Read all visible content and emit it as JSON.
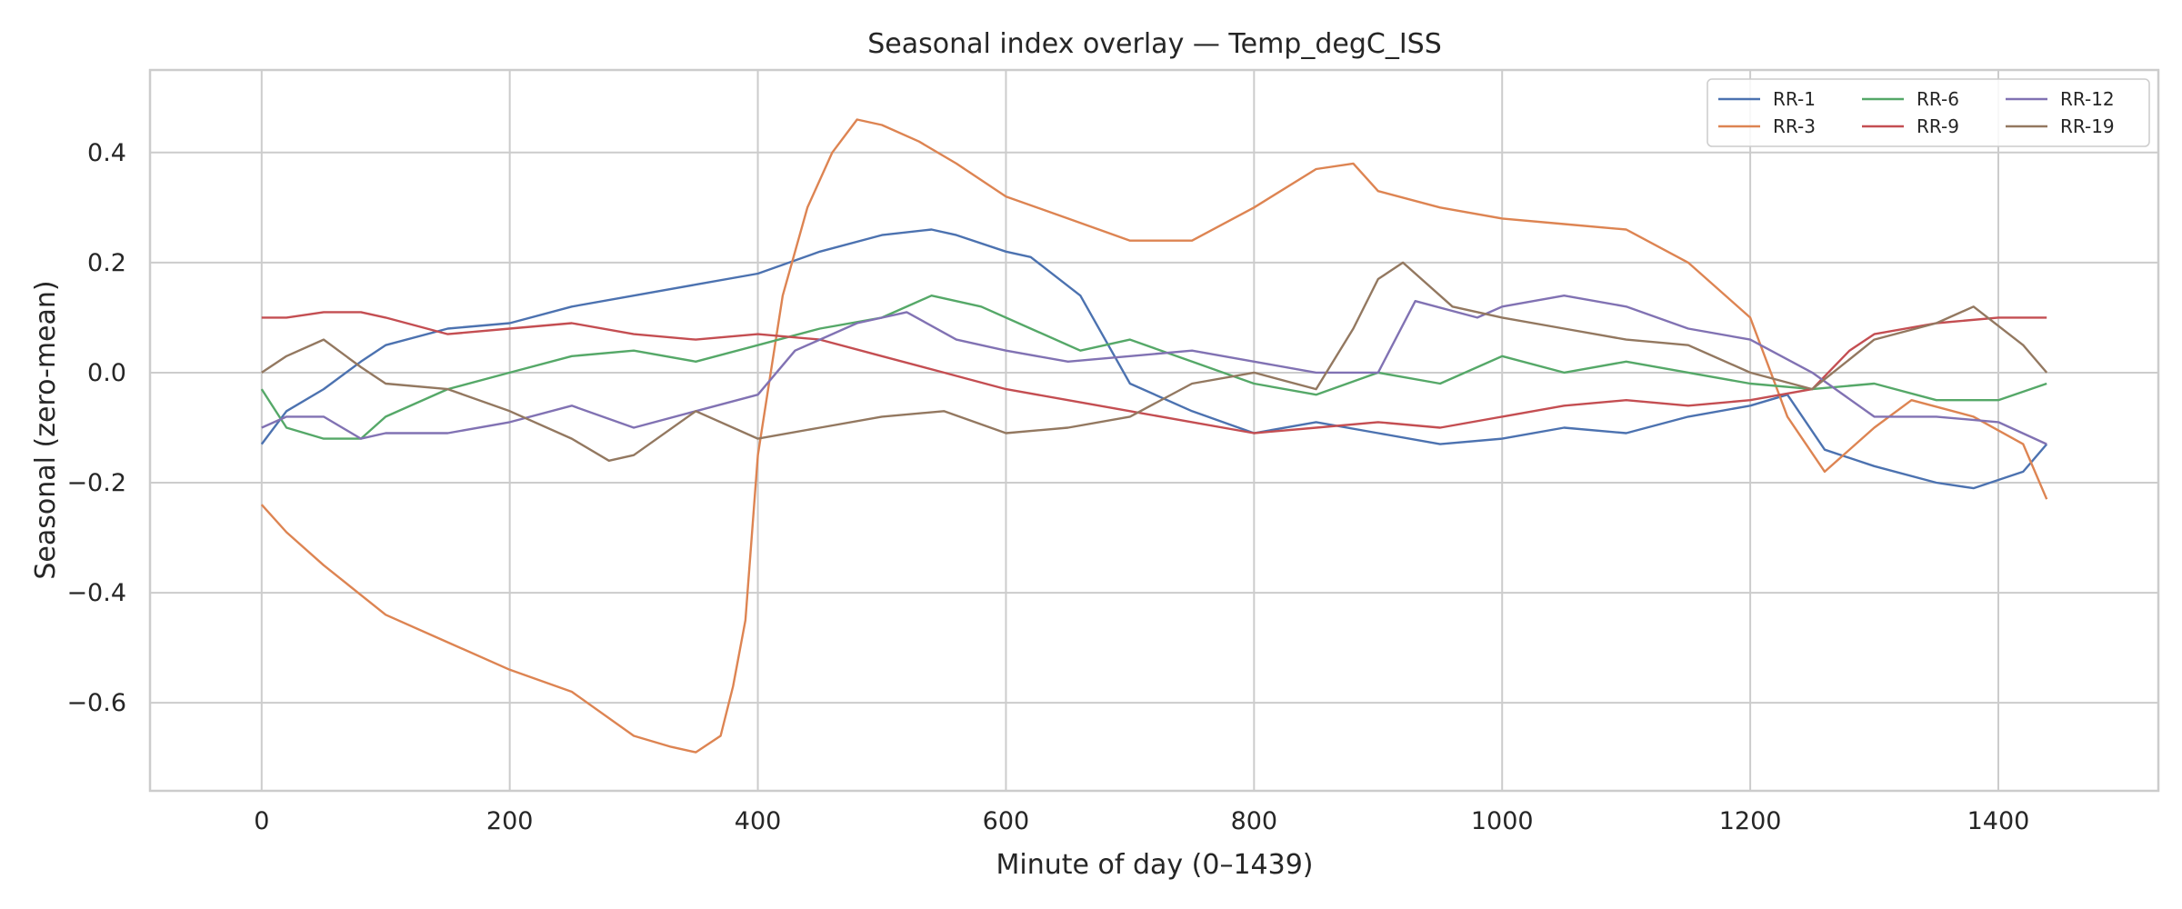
{
  "chart_data": {
    "type": "line",
    "title": "Seasonal index overlay — Temp_degC_ISS",
    "xlabel": "Minute of day (0–1439)",
    "ylabel": "Seasonal (zero-mean)",
    "xlim": [
      -90,
      1529
    ],
    "ylim": [
      -0.76,
      0.55
    ],
    "xticks": [
      0,
      200,
      400,
      600,
      800,
      1000,
      1200,
      1400
    ],
    "xtick_labels": [
      "0",
      "200",
      "400",
      "600",
      "800",
      "1000",
      "1200",
      "1400"
    ],
    "yticks": [
      -0.6,
      -0.4,
      -0.2,
      0.0,
      0.2,
      0.4
    ],
    "ytick_labels": [
      "−0.6",
      "−0.4",
      "−0.2",
      "0.0",
      "0.2",
      "0.4"
    ],
    "grid": true,
    "legend": {
      "placement": "top-right",
      "columns": 3
    },
    "series": [
      {
        "name": "RR-1",
        "color": "#4c72b0",
        "x": [
          0,
          20,
          50,
          80,
          100,
          150,
          200,
          250,
          300,
          350,
          400,
          450,
          500,
          540,
          560,
          600,
          620,
          660,
          700,
          750,
          800,
          850,
          900,
          950,
          1000,
          1050,
          1100,
          1150,
          1200,
          1230,
          1260,
          1300,
          1350,
          1380,
          1420,
          1439
        ],
        "values": [
          -0.13,
          -0.07,
          -0.03,
          0.02,
          0.05,
          0.08,
          0.09,
          0.12,
          0.14,
          0.16,
          0.18,
          0.22,
          0.25,
          0.26,
          0.25,
          0.22,
          0.21,
          0.14,
          -0.02,
          -0.07,
          -0.11,
          -0.09,
          -0.11,
          -0.13,
          -0.12,
          -0.1,
          -0.11,
          -0.08,
          -0.06,
          -0.04,
          -0.14,
          -0.17,
          -0.2,
          -0.21,
          -0.18,
          -0.13
        ]
      },
      {
        "name": "RR-3",
        "color": "#dd8452",
        "x": [
          0,
          20,
          50,
          100,
          150,
          200,
          250,
          300,
          330,
          350,
          370,
          380,
          390,
          400,
          420,
          440,
          460,
          480,
          500,
          530,
          560,
          600,
          650,
          700,
          750,
          800,
          850,
          880,
          900,
          950,
          1000,
          1050,
          1100,
          1150,
          1200,
          1230,
          1260,
          1300,
          1330,
          1380,
          1420,
          1439
        ],
        "values": [
          -0.24,
          -0.29,
          -0.35,
          -0.44,
          -0.49,
          -0.54,
          -0.58,
          -0.66,
          -0.68,
          -0.69,
          -0.66,
          -0.57,
          -0.45,
          -0.15,
          0.14,
          0.3,
          0.4,
          0.46,
          0.45,
          0.42,
          0.38,
          0.32,
          0.28,
          0.24,
          0.24,
          0.3,
          0.37,
          0.38,
          0.33,
          0.3,
          0.28,
          0.27,
          0.26,
          0.2,
          0.1,
          -0.08,
          -0.18,
          -0.1,
          -0.05,
          -0.08,
          -0.13,
          -0.23
        ]
      },
      {
        "name": "RR-6",
        "color": "#55a868",
        "x": [
          0,
          20,
          50,
          80,
          100,
          150,
          200,
          250,
          300,
          350,
          400,
          450,
          500,
          540,
          580,
          620,
          660,
          700,
          750,
          800,
          850,
          900,
          950,
          1000,
          1050,
          1100,
          1150,
          1200,
          1250,
          1300,
          1350,
          1400,
          1439
        ],
        "values": [
          -0.03,
          -0.1,
          -0.12,
          -0.12,
          -0.08,
          -0.03,
          0.0,
          0.03,
          0.04,
          0.02,
          0.05,
          0.08,
          0.1,
          0.14,
          0.12,
          0.08,
          0.04,
          0.06,
          0.02,
          -0.02,
          -0.04,
          0.0,
          -0.02,
          0.03,
          0.0,
          0.02,
          0.0,
          -0.02,
          -0.03,
          -0.02,
          -0.05,
          -0.05,
          -0.02
        ]
      },
      {
        "name": "RR-9",
        "color": "#c44e52",
        "x": [
          0,
          20,
          50,
          80,
          100,
          150,
          200,
          250,
          300,
          350,
          400,
          450,
          500,
          550,
          600,
          650,
          700,
          750,
          800,
          850,
          900,
          950,
          1000,
          1050,
          1100,
          1150,
          1200,
          1250,
          1280,
          1300,
          1350,
          1400,
          1439
        ],
        "values": [
          0.1,
          0.1,
          0.11,
          0.11,
          0.1,
          0.07,
          0.08,
          0.09,
          0.07,
          0.06,
          0.07,
          0.06,
          0.03,
          0.0,
          -0.03,
          -0.05,
          -0.07,
          -0.09,
          -0.11,
          -0.1,
          -0.09,
          -0.1,
          -0.08,
          -0.06,
          -0.05,
          -0.06,
          -0.05,
          -0.03,
          0.04,
          0.07,
          0.09,
          0.1,
          0.1
        ]
      },
      {
        "name": "RR-12",
        "color": "#8172b3",
        "x": [
          0,
          20,
          50,
          80,
          100,
          150,
          200,
          250,
          300,
          350,
          400,
          430,
          480,
          520,
          560,
          600,
          650,
          700,
          750,
          800,
          850,
          900,
          930,
          980,
          1000,
          1050,
          1100,
          1150,
          1200,
          1250,
          1300,
          1350,
          1400,
          1439
        ],
        "values": [
          -0.1,
          -0.08,
          -0.08,
          -0.12,
          -0.11,
          -0.11,
          -0.09,
          -0.06,
          -0.1,
          -0.07,
          -0.04,
          0.04,
          0.09,
          0.11,
          0.06,
          0.04,
          0.02,
          0.03,
          0.04,
          0.02,
          0.0,
          0.0,
          0.13,
          0.1,
          0.12,
          0.14,
          0.12,
          0.08,
          0.06,
          0.0,
          -0.08,
          -0.08,
          -0.09,
          -0.13
        ]
      },
      {
        "name": "RR-19",
        "color": "#937860",
        "x": [
          0,
          20,
          50,
          80,
          100,
          150,
          200,
          250,
          280,
          300,
          350,
          400,
          450,
          500,
          550,
          600,
          650,
          700,
          750,
          800,
          850,
          880,
          900,
          920,
          960,
          1000,
          1050,
          1100,
          1150,
          1200,
          1250,
          1300,
          1350,
          1380,
          1420,
          1439
        ],
        "values": [
          0.0,
          0.03,
          0.06,
          0.01,
          -0.02,
          -0.03,
          -0.07,
          -0.12,
          -0.16,
          -0.15,
          -0.07,
          -0.12,
          -0.1,
          -0.08,
          -0.07,
          -0.11,
          -0.1,
          -0.08,
          -0.02,
          0.0,
          -0.03,
          0.08,
          0.17,
          0.2,
          0.12,
          0.1,
          0.08,
          0.06,
          0.05,
          0.0,
          -0.03,
          0.06,
          0.09,
          0.12,
          0.05,
          0.0
        ]
      }
    ]
  }
}
